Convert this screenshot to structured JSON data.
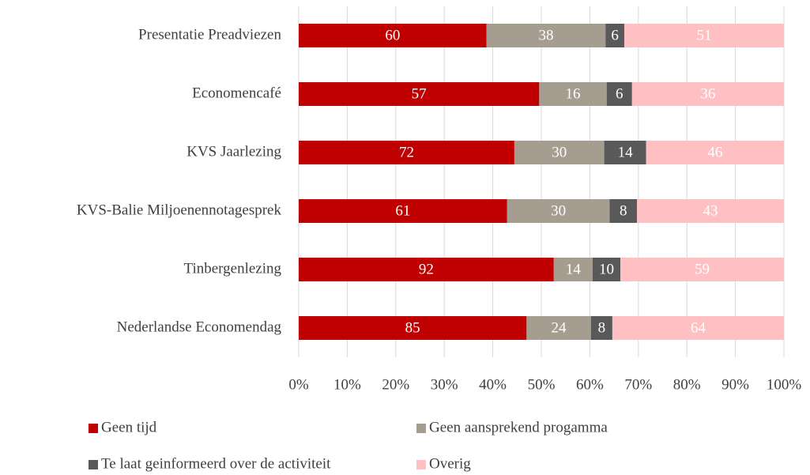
{
  "chart_data": {
    "type": "bar",
    "orientation": "horizontal",
    "stacked": "percent",
    "categories": [
      "Presentatie Preadviezen",
      "Economencafé",
      "KVS Jaarlezing",
      "KVS-Balie Miljoenennotagesprek",
      "Tinbergenlezing",
      "Nederlandse Economendag"
    ],
    "series": [
      {
        "name": "Geen tijd",
        "color": "#c00000",
        "values": [
          60,
          57,
          72,
          61,
          92,
          85
        ]
      },
      {
        "name": "Geen aansprekend progamma",
        "color": "#a59d8f",
        "values": [
          38,
          16,
          30,
          30,
          14,
          24
        ]
      },
      {
        "name": "Te laat geinformeerd over de activiteit",
        "color": "#595959",
        "values": [
          6,
          6,
          14,
          8,
          10,
          8
        ]
      },
      {
        "name": "Overig",
        "color": "#ffc0c3",
        "values": [
          51,
          36,
          46,
          43,
          59,
          64
        ]
      }
    ],
    "xlim": [
      0,
      100
    ],
    "xticks": [
      {
        "value": 0,
        "label": "0%"
      },
      {
        "value": 10,
        "label": "10%"
      },
      {
        "value": 20,
        "label": "20%"
      },
      {
        "value": 30,
        "label": "30%"
      },
      {
        "value": 40,
        "label": "40%"
      },
      {
        "value": 50,
        "label": "50%"
      },
      {
        "value": 60,
        "label": "60%"
      },
      {
        "value": 70,
        "label": "70%"
      },
      {
        "value": 80,
        "label": "80%"
      },
      {
        "value": 90,
        "label": "90%"
      },
      {
        "value": 100,
        "label": "100%"
      }
    ],
    "grid": true,
    "legend": "bottom"
  }
}
